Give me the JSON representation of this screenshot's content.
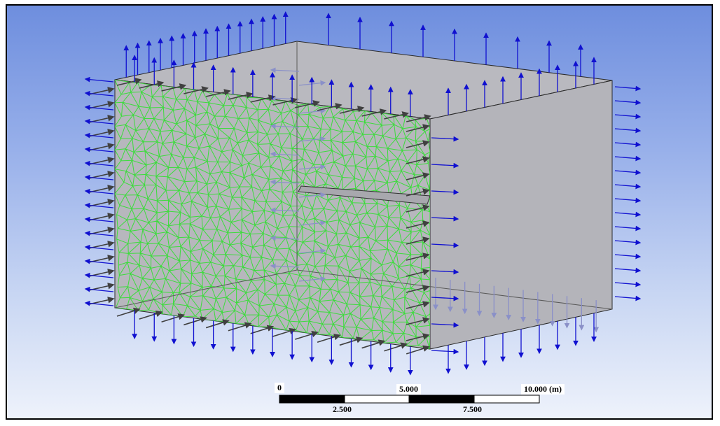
{
  "scale_bar": {
    "labels_top": [
      "0",
      "5.000",
      "10.000 (m)"
    ],
    "labels_bottom": [
      "2.500",
      "7.500"
    ]
  },
  "colors": {
    "background_top": "#6e8ede",
    "background_bottom": "#eef2fb",
    "mesh": "#3cdc3c",
    "arrow_visible": "#1010d0",
    "arrow_hidden": "#8a90c8",
    "arrow_face": "#404040",
    "face": "#b7b7bd"
  },
  "icons": [
    "arrow-normal-icon",
    "mesh-icon"
  ]
}
